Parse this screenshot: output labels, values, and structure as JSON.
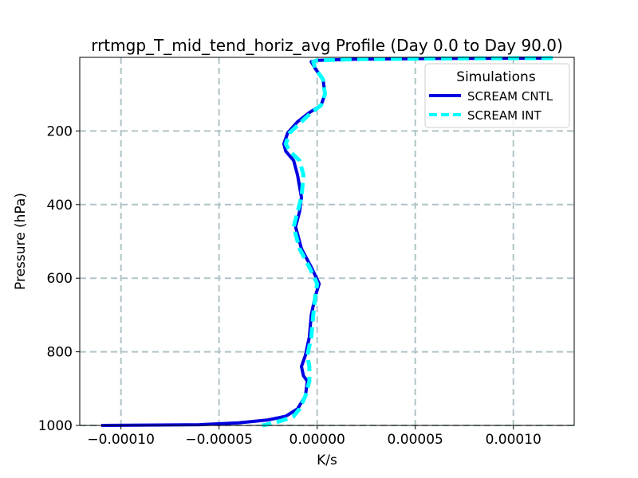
{
  "chart_data": {
    "type": "line",
    "title": "rrtmgp_T_mid_tend_horiz_avg Profile (Day 0.0 to Day 90.0)",
    "xlabel": "K/s",
    "ylabel": "Pressure (hPa)",
    "xlim": [
      -0.000121,
      0.000131
    ],
    "ylim": [
      1000,
      0
    ],
    "y_inverted": true,
    "grid": true,
    "x_ticks": [
      -0.0001,
      -5e-05,
      0.0,
      5e-05,
      0.0001
    ],
    "x_tick_labels": [
      "−0.00010",
      "−0.00005",
      "0.00000",
      "0.00005",
      "0.00010"
    ],
    "y_ticks": [
      200,
      400,
      600,
      800,
      1000
    ],
    "y_tick_labels": [
      "200",
      "400",
      "600",
      "800",
      "1000"
    ],
    "legend": {
      "title": "Simulations",
      "placement": "top-right"
    },
    "series": [
      {
        "name": "SCREAM CNTL",
        "color": "#0000e0",
        "style": "solid",
        "points": [
          [
            0.00012,
            2
          ],
          [
            6e-05,
            3
          ],
          [
            2e-05,
            5
          ],
          [
            0.0,
            8
          ],
          [
            -3e-06,
            12
          ],
          [
            -1e-06,
            30
          ],
          [
            3e-06,
            60
          ],
          [
            4e-06,
            100
          ],
          [
            2e-06,
            130
          ],
          [
            -4e-06,
            150
          ],
          [
            -1e-05,
            175
          ],
          [
            -1.5e-05,
            205
          ],
          [
            -1.7e-05,
            235
          ],
          [
            -1.6e-05,
            255
          ],
          [
            -1.2e-05,
            280
          ],
          [
            -1e-05,
            320
          ],
          [
            -8e-06,
            380
          ],
          [
            -9e-06,
            420
          ],
          [
            -1.1e-05,
            460
          ],
          [
            -8e-06,
            520
          ],
          [
            -3e-06,
            570
          ],
          [
            1e-06,
            615
          ],
          [
            -1e-06,
            650
          ],
          [
            -3e-06,
            700
          ],
          [
            -4e-06,
            760
          ],
          [
            -6e-06,
            810
          ],
          [
            -8e-06,
            840
          ],
          [
            -7e-06,
            865
          ],
          [
            -5e-06,
            880
          ],
          [
            -6e-06,
            920
          ],
          [
            -1e-05,
            955
          ],
          [
            -1.6e-05,
            975
          ],
          [
            -2.5e-05,
            985
          ],
          [
            -4e-05,
            993
          ],
          [
            -6e-05,
            998
          ],
          [
            -0.00011,
            1000
          ]
        ]
      },
      {
        "name": "SCREAM INT",
        "color": "#00ffff",
        "style": "dashed",
        "points": [
          [
            0.00012,
            2
          ],
          [
            6e-05,
            3
          ],
          [
            2e-05,
            5
          ],
          [
            0.0,
            8
          ],
          [
            -2e-06,
            12
          ],
          [
            -1e-06,
            30
          ],
          [
            3e-06,
            60
          ],
          [
            4e-06,
            100
          ],
          [
            2e-06,
            130
          ],
          [
            -3e-06,
            150
          ],
          [
            -8e-06,
            175
          ],
          [
            -1.4e-05,
            205
          ],
          [
            -1.6e-05,
            235
          ],
          [
            -1.4e-05,
            255
          ],
          [
            -9e-06,
            280
          ],
          [
            -7e-06,
            320
          ],
          [
            -8e-06,
            380
          ],
          [
            -1e-05,
            420
          ],
          [
            -1.2e-05,
            460
          ],
          [
            -9e-06,
            520
          ],
          [
            -4e-06,
            570
          ],
          [
            0.0,
            615
          ],
          [
            -1e-06,
            650
          ],
          [
            -2e-06,
            700
          ],
          [
            -3e-06,
            760
          ],
          [
            -5e-06,
            810
          ],
          [
            -4e-06,
            840
          ],
          [
            -4e-06,
            865
          ],
          [
            -4e-06,
            880
          ],
          [
            -6e-06,
            920
          ],
          [
            -9e-06,
            955
          ],
          [
            -1.2e-05,
            975
          ],
          [
            -1.7e-05,
            985
          ],
          [
            -2.2e-05,
            993
          ],
          [
            -2.6e-05,
            998
          ],
          [
            -2.8e-05,
            1000
          ]
        ]
      }
    ]
  }
}
